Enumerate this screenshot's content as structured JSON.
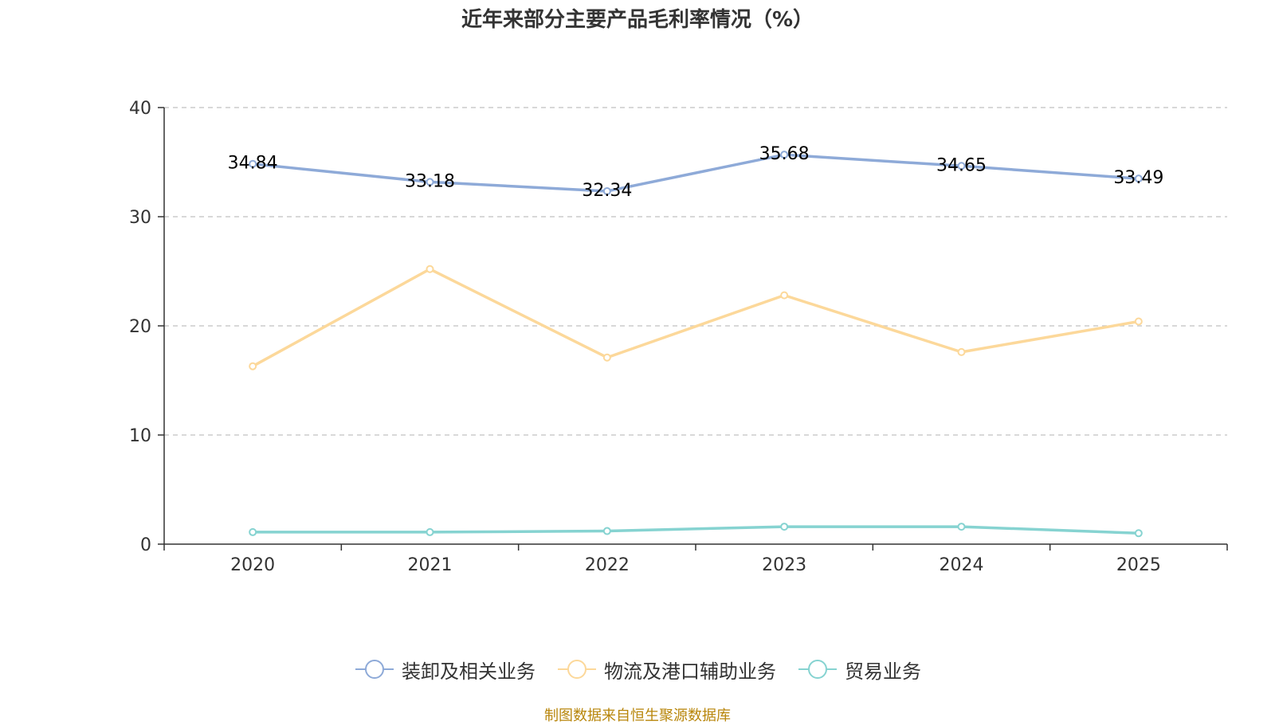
{
  "chart_data": {
    "type": "line",
    "title": "近年来部分主要产品毛利率情况（%）",
    "x": [
      "2020",
      "2021",
      "2022",
      "2023",
      "2024",
      "2025"
    ],
    "ylim": [
      0,
      40
    ],
    "yticks": [
      "0",
      "10",
      "20",
      "30",
      "40"
    ],
    "grid": true,
    "legend_position": "bottom",
    "series": [
      {
        "name": "装卸及相关业务",
        "color": "#8eaad8",
        "values": [
          34.84,
          33.18,
          32.34,
          35.68,
          34.65,
          33.49
        ],
        "labels": [
          "34.84",
          "33.18",
          "32.34",
          "35.68",
          "34.65",
          "33.49"
        ]
      },
      {
        "name": "物流及港口辅助业务",
        "color": "#fcd89a",
        "values": [
          16.3,
          25.2,
          17.1,
          22.8,
          17.6,
          20.4
        ]
      },
      {
        "name": "贸易业务",
        "color": "#86d3d1",
        "values": [
          1.1,
          1.1,
          1.2,
          1.6,
          1.6,
          1.0
        ]
      }
    ]
  },
  "source": "制图数据来自恒生聚源数据库"
}
